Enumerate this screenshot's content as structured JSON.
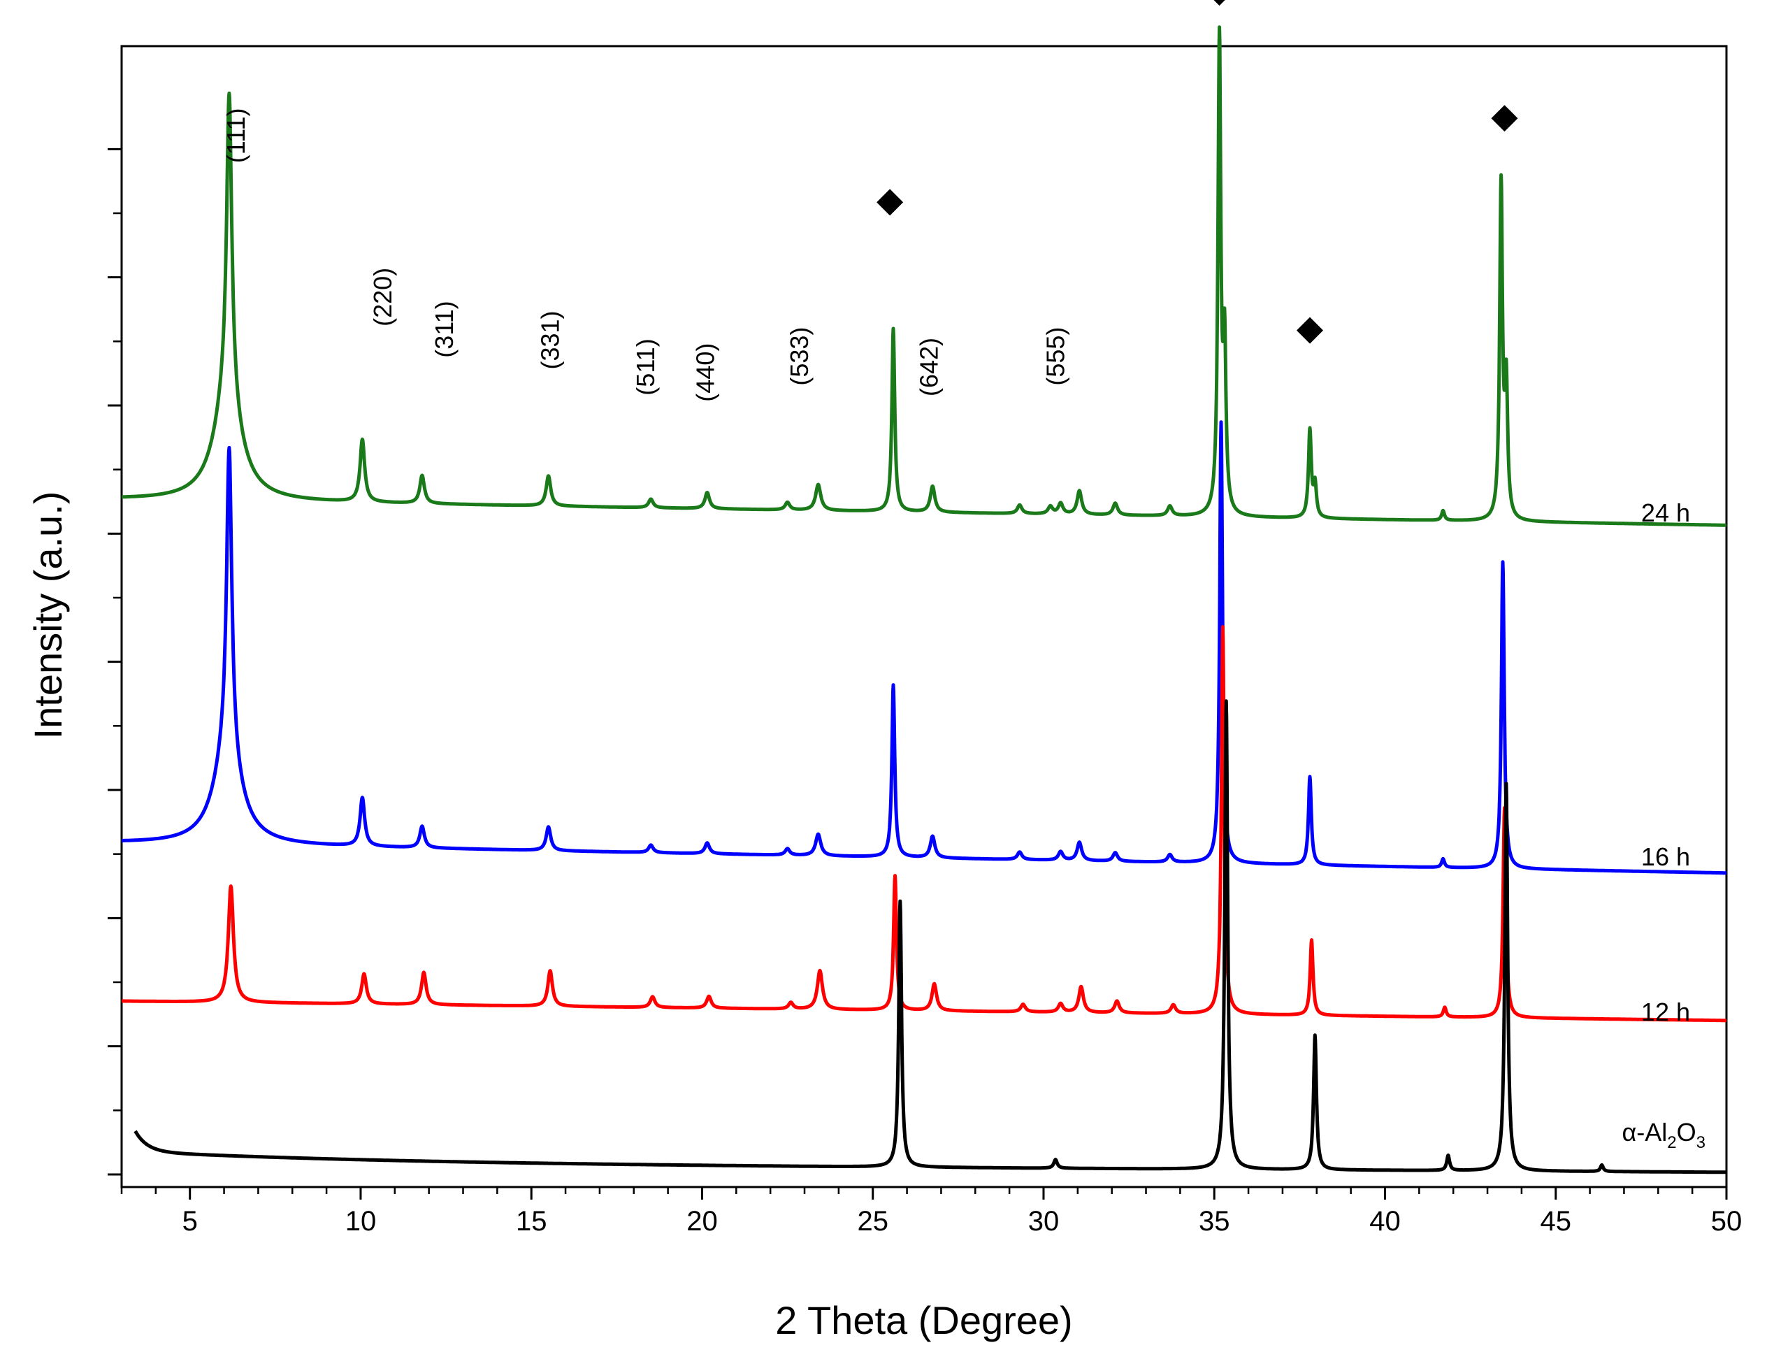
{
  "chart_data": {
    "type": "line",
    "title": "",
    "xlabel": "2 Theta (Degree)",
    "ylabel": "Intensity (a.u.)",
    "xlim": [
      3,
      50
    ],
    "ylim": [
      0,
      100
    ],
    "x_ticks": [
      5,
      10,
      15,
      20,
      25,
      30,
      35,
      40,
      45,
      50
    ],
    "y_tick_count": 9,
    "series": [
      {
        "name": "24 h",
        "color": "#1a7a1a",
        "baseline_start": 62.7,
        "baseline_end": 60.3,
        "peaks": [
          [
            6.15,
            28,
            0.09
          ],
          [
            6.1,
            10,
            0.45
          ],
          [
            10.05,
            5.8,
            0.08
          ],
          [
            11.8,
            2.6,
            0.08
          ],
          [
            15.5,
            2.8,
            0.08
          ],
          [
            18.5,
            0.8,
            0.08
          ],
          [
            20.15,
            1.5,
            0.08
          ],
          [
            22.5,
            0.7,
            0.08
          ],
          [
            23.4,
            2.4,
            0.09
          ],
          [
            25.6,
            17,
            0.05
          ],
          [
            26.75,
            2.4,
            0.08
          ],
          [
            29.3,
            0.8,
            0.08
          ],
          [
            30.2,
            0.7,
            0.08
          ],
          [
            30.5,
            1.0,
            0.08
          ],
          [
            31.05,
            2.2,
            0.08
          ],
          [
            32.1,
            1.1,
            0.08
          ],
          [
            33.7,
            0.9,
            0.08
          ],
          [
            35.15,
            44,
            0.05
          ],
          [
            35.3,
            15,
            0.05
          ],
          [
            37.8,
            8.1,
            0.05
          ],
          [
            37.95,
            3,
            0.05
          ],
          [
            41.7,
            0.9,
            0.05
          ],
          [
            43.4,
            31,
            0.05
          ],
          [
            43.55,
            12,
            0.05
          ]
        ]
      },
      {
        "name": "16 h",
        "color": "#0000ff",
        "baseline_start": 30.8,
        "baseline_end": 28.0,
        "peaks": [
          [
            6.15,
            28,
            0.09
          ],
          [
            6.1,
            9,
            0.45
          ],
          [
            10.05,
            4.5,
            0.08
          ],
          [
            11.8,
            2.0,
            0.08
          ],
          [
            15.5,
            2.2,
            0.08
          ],
          [
            18.5,
            0.7,
            0.08
          ],
          [
            20.15,
            1.0,
            0.08
          ],
          [
            22.5,
            0.6,
            0.08
          ],
          [
            23.4,
            2.0,
            0.09
          ],
          [
            25.6,
            16,
            0.05
          ],
          [
            26.75,
            2.0,
            0.08
          ],
          [
            29.3,
            0.7,
            0.08
          ],
          [
            30.5,
            0.8,
            0.08
          ],
          [
            31.05,
            1.7,
            0.08
          ],
          [
            32.1,
            0.8,
            0.08
          ],
          [
            33.7,
            0.7,
            0.08
          ],
          [
            35.2,
            41,
            0.05
          ],
          [
            37.8,
            8.2,
            0.05
          ],
          [
            41.7,
            0.8,
            0.05
          ],
          [
            43.45,
            28.5,
            0.05
          ]
        ]
      },
      {
        "name": "12 h",
        "color": "#ff0000",
        "baseline_start": 16.1,
        "baseline_end": 14.3,
        "peaks": [
          [
            6.2,
            10.8,
            0.09
          ],
          [
            10.1,
            2.8,
            0.08
          ],
          [
            11.85,
            3.0,
            0.08
          ],
          [
            15.55,
            3.3,
            0.08
          ],
          [
            18.55,
            1.0,
            0.08
          ],
          [
            20.2,
            1.1,
            0.08
          ],
          [
            22.6,
            0.6,
            0.08
          ],
          [
            23.45,
            3.6,
            0.09
          ],
          [
            25.65,
            12.5,
            0.05
          ],
          [
            26.8,
            2.5,
            0.08
          ],
          [
            29.4,
            0.7,
            0.08
          ],
          [
            30.5,
            0.8,
            0.08
          ],
          [
            31.1,
            2.4,
            0.08
          ],
          [
            32.15,
            1.1,
            0.08
          ],
          [
            33.8,
            0.8,
            0.08
          ],
          [
            35.25,
            36,
            0.05
          ],
          [
            37.85,
            7.0,
            0.05
          ],
          [
            41.75,
            0.9,
            0.05
          ],
          [
            43.5,
            19.5,
            0.05
          ]
        ]
      },
      {
        "name": "α-Al2O3",
        "color": "#000000",
        "baseline_start": 1.0,
        "baseline_end": 0.2,
        "start_x": 3.4,
        "start_bump": 3.2,
        "peaks": [
          [
            25.8,
            24.7,
            0.05
          ],
          [
            30.35,
            0.8,
            0.06
          ],
          [
            35.35,
            43.5,
            0.05
          ],
          [
            37.95,
            12.5,
            0.05
          ],
          [
            41.85,
            1.4,
            0.05
          ],
          [
            43.55,
            36,
            0.05
          ],
          [
            46.35,
            0.6,
            0.05
          ]
        ]
      }
    ],
    "series_labels": {
      "s24": "24 h",
      "s16": "16 h",
      "s12": "12 h",
      "sal_prefix": "α-Al",
      "sal_sub1": "2",
      "sal_mid": "O",
      "sal_sub2": "3"
    },
    "peak_labels": [
      {
        "text": "(111)",
        "x": 6.6,
        "y": 96.5
      },
      {
        "text": "(220)",
        "x": 10.9,
        "y": 81.5
      },
      {
        "text": "(311)",
        "x": 12.7,
        "y": 78.5
      },
      {
        "text": "(331)",
        "x": 15.8,
        "y": 77.5
      },
      {
        "text": "(511)",
        "x": 18.6,
        "y": 75
      },
      {
        "text": "(440)",
        "x": 20.35,
        "y": 74.5
      },
      {
        "text": "(533)",
        "x": 23.1,
        "y": 76
      },
      {
        "text": "(642)",
        "x": 26.9,
        "y": 75
      },
      {
        "text": "(555)",
        "x": 30.6,
        "y": 76
      }
    ],
    "markers": {
      "symbol": "diamond",
      "points": [
        [
          25.5,
          90.3
        ],
        [
          35.15,
          109.8
        ],
        [
          37.8,
          78.4
        ],
        [
          43.5,
          98.1
        ]
      ]
    }
  }
}
